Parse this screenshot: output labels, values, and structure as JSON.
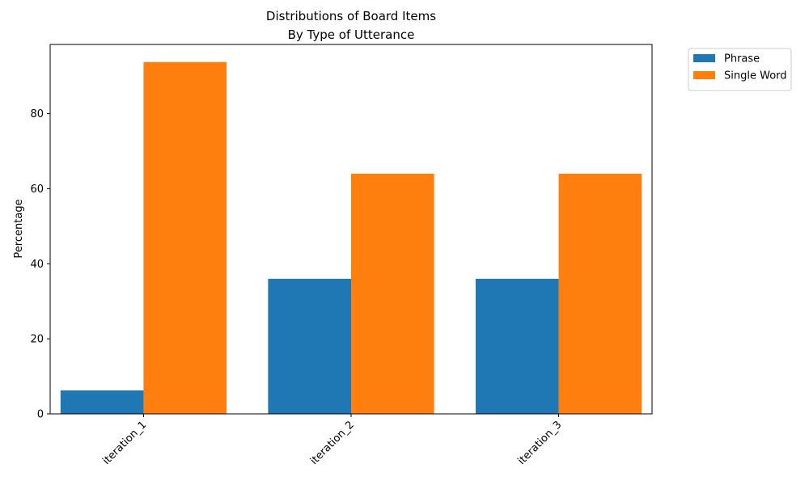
{
  "chart_data": {
    "type": "bar",
    "title_line1": "Distributions of Board Items",
    "title_line2": "By Type of Utterance",
    "xlabel": "",
    "ylabel": "Percentage",
    "categories": [
      "iteration_1",
      "iteration_2",
      "iteration_3"
    ],
    "series": [
      {
        "name": "Phrase",
        "color": "#1f77b4",
        "values": [
          6.25,
          36.0,
          36.0
        ]
      },
      {
        "name": "Single Word",
        "color": "#ff7f0e",
        "values": [
          93.75,
          64.0,
          64.0
        ]
      }
    ],
    "ylim": [
      0,
      98.4375
    ],
    "yticks": [
      0,
      20,
      40,
      60,
      80
    ],
    "xtick_rotation_deg": 45,
    "legend_position": "outside-top-right",
    "grid": false
  }
}
